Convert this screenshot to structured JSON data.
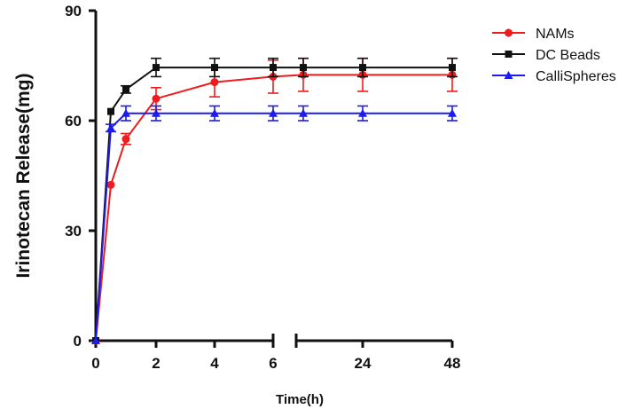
{
  "chart_data": {
    "type": "line",
    "title": "",
    "xlabel": "Time(h)",
    "ylabel": "Irinotecan Release(mg)",
    "ylim": [
      0,
      90
    ],
    "yticks": [
      0,
      30,
      60,
      90
    ],
    "x_axis_segments": [
      {
        "range": [
          0,
          6
        ],
        "tick_labels": [
          "0",
          "2",
          "4",
          "6"
        ]
      },
      {
        "range": [
          24,
          48
        ],
        "tick_labels": [
          "24",
          "48"
        ]
      }
    ],
    "x_categories": [
      "0",
      "0.5",
      "1",
      "2",
      "4",
      "6",
      "12",
      "24",
      "48"
    ],
    "series": [
      {
        "name": "NAMs",
        "color": "#ee1c1c",
        "marker": "circle",
        "points": [
          {
            "x": "0",
            "y": 0,
            "err": 0
          },
          {
            "x": "0.5",
            "y": 42.5,
            "err": 0
          },
          {
            "x": "1",
            "y": 55,
            "err": 1.5
          },
          {
            "x": "2",
            "y": 66,
            "err": 3
          },
          {
            "x": "4",
            "y": 70.5,
            "err": 4
          },
          {
            "x": "6",
            "y": 72,
            "err": 4.5
          },
          {
            "x": "12",
            "y": 72.5,
            "err": 4.5
          },
          {
            "x": "24",
            "y": 72.5,
            "err": 4.5
          },
          {
            "x": "48",
            "y": 72.5,
            "err": 4.5
          }
        ]
      },
      {
        "name": "DC Beads",
        "color": "#111111",
        "marker": "square",
        "points": [
          {
            "x": "0",
            "y": 0,
            "err": 0
          },
          {
            "x": "0.5",
            "y": 62.5,
            "err": 0
          },
          {
            "x": "1",
            "y": 68.5,
            "err": 1
          },
          {
            "x": "2",
            "y": 74.5,
            "err": 2.5
          },
          {
            "x": "4",
            "y": 74.5,
            "err": 2.5
          },
          {
            "x": "6",
            "y": 74.5,
            "err": 2.5
          },
          {
            "x": "12",
            "y": 74.5,
            "err": 2.5
          },
          {
            "x": "24",
            "y": 74.5,
            "err": 2.5
          },
          {
            "x": "48",
            "y": 74.5,
            "err": 2.5
          }
        ]
      },
      {
        "name": "CalliSpheres",
        "color": "#1c1cee",
        "marker": "triangle",
        "points": [
          {
            "x": "0",
            "y": 0,
            "err": 0
          },
          {
            "x": "0.5",
            "y": 58,
            "err": 1
          },
          {
            "x": "1",
            "y": 62,
            "err": 2
          },
          {
            "x": "2",
            "y": 62,
            "err": 2
          },
          {
            "x": "4",
            "y": 62,
            "err": 2
          },
          {
            "x": "6",
            "y": 62,
            "err": 2
          },
          {
            "x": "12",
            "y": 62,
            "err": 2
          },
          {
            "x": "24",
            "y": 62,
            "err": 2
          },
          {
            "x": "48",
            "y": 62,
            "err": 2
          }
        ]
      }
    ],
    "legend": {
      "position": "top-right",
      "entries": [
        "NAMs",
        "DC Beads",
        "CalliSpheres"
      ]
    }
  }
}
